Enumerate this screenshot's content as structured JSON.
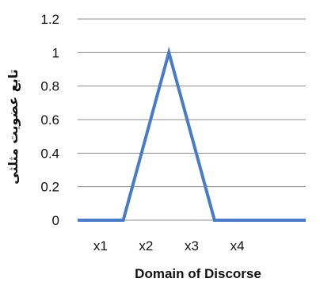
{
  "chart_data": {
    "type": "line",
    "title": "",
    "xlabel": "Domain of Discorse",
    "ylabel": "تابع عضویت مثلثی",
    "x_positions": [
      0,
      1,
      2,
      3,
      4,
      5
    ],
    "x_tick_labels": [
      "x1",
      "x2",
      "x3",
      "x4"
    ],
    "x_tick_positions": [
      0.5,
      1.5,
      2.5,
      3.5
    ],
    "xlim": [
      0,
      5
    ],
    "series": [
      {
        "values": [
          0,
          0,
          1,
          0,
          0,
          0
        ],
        "color": "#4a7bc8"
      }
    ],
    "ylim": [
      0,
      1.2
    ],
    "y_ticks": [
      0,
      0.2,
      0.4,
      0.6,
      0.8,
      1,
      1.2
    ],
    "y_tick_labels": [
      "0",
      "0.2",
      "0.4",
      "0.6",
      "0.8",
      "1",
      "1.2"
    ],
    "grid": true,
    "gridline_color": "#8c8c8c",
    "legend": "none"
  }
}
